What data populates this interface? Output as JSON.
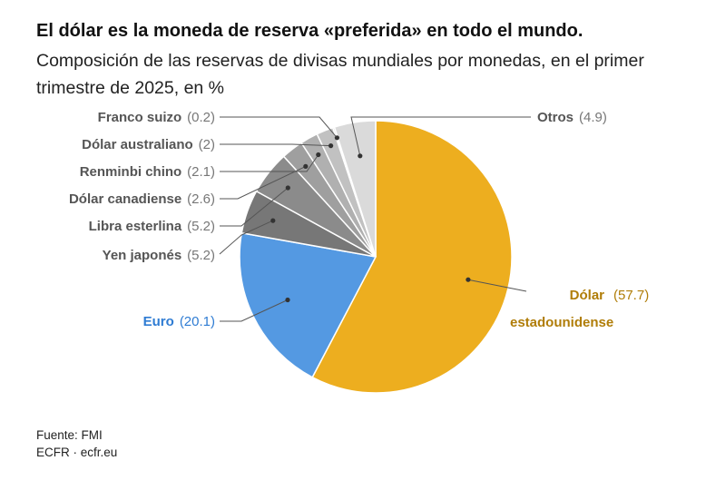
{
  "title": "El dólar es la moneda de reserva «preferida» en todo el mundo.",
  "subtitle": "Composición de las reservas de divisas mundiales por monedas, en el primer trimestre de 2025, en %",
  "source": {
    "line1": "Fuente: FMI",
    "line2": "ECFR · ecfr.eu"
  },
  "chart_data": {
    "type": "pie",
    "title": "El dólar es la moneda de reserva «preferida» en todo el mundo.",
    "subtitle": "Composición de las reservas de divisas mundiales por monedas, en el primer trimestre de 2025, en %",
    "start": "top, clockwise",
    "slices": [
      {
        "key": "usd",
        "label": "Dólar",
        "label2": "estadounidense",
        "value": 57.7,
        "value_text": "(57.7)",
        "color": "#edae1f",
        "label_color": "#b07d08",
        "value_color": "#b07d08"
      },
      {
        "key": "eur",
        "label": "Euro",
        "value": 20.1,
        "value_text": "(20.1)",
        "color": "#5499e2",
        "label_color": "#2f7cd3",
        "value_color": "#2f7cd3"
      },
      {
        "key": "jpy",
        "label": "Yen japonés",
        "value": 5.2,
        "value_text": "(5.2)",
        "color": "#777777",
        "label_color": "#555555",
        "value_color": "#777777"
      },
      {
        "key": "gbp",
        "label": "Libra esterlina",
        "value": 5.2,
        "value_text": "(5.2)",
        "color": "#8b8b8b",
        "label_color": "#555555",
        "value_color": "#777777"
      },
      {
        "key": "cad",
        "label": "Dólar canadiense",
        "value": 2.6,
        "value_text": "(2.6)",
        "color": "#9f9f9f",
        "label_color": "#555555",
        "value_color": "#777777"
      },
      {
        "key": "cny",
        "label": "Renminbi chino",
        "value": 2.1,
        "value_text": "(2.1)",
        "color": "#b0b0b0",
        "label_color": "#555555",
        "value_color": "#777777"
      },
      {
        "key": "aud",
        "label": "Dólar australiano",
        "value": 2,
        "value_text": "(2)",
        "color": "#c1c1c1",
        "label_color": "#555555",
        "value_color": "#777777"
      },
      {
        "key": "chf",
        "label": "Franco suizo",
        "value": 0.2,
        "value_text": "(0.2)",
        "color": "#cfcfcf",
        "label_color": "#555555",
        "value_color": "#777777"
      },
      {
        "key": "oth",
        "label": "Otros",
        "value": 4.9,
        "value_text": "(4.9)",
        "color": "#dadada",
        "label_color": "#555555",
        "value_color": "#777777"
      }
    ]
  }
}
